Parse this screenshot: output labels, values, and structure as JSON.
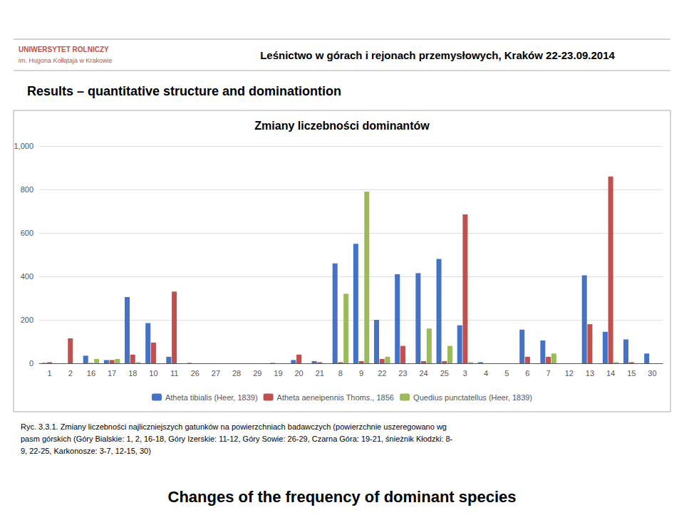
{
  "chart_data": {
    "type": "bar",
    "title": "Zmiany liczebności dominantów",
    "categories": [
      "1",
      "2",
      "16",
      "17",
      "18",
      "10",
      "11",
      "26",
      "27",
      "28",
      "29",
      "19",
      "20",
      "21",
      "8",
      "9",
      "22",
      "23",
      "24",
      "25",
      "3",
      "4",
      "5",
      "6",
      "7",
      "12",
      "13",
      "14",
      "15",
      "30"
    ],
    "series": [
      {
        "name": "Atheta tibialis (Heer, 1839)",
        "color": "#4472C4",
        "values": [
          2,
          0,
          35,
          15,
          305,
          185,
          30,
          2,
          0,
          0,
          0,
          2,
          15,
          10,
          460,
          550,
          200,
          410,
          415,
          480,
          175,
          5,
          0,
          155,
          105,
          0,
          405,
          145,
          110,
          45
        ]
      },
      {
        "name": "Atheta aeneipennis Thoms., 1856",
        "color": "#C0504D",
        "values": [
          5,
          115,
          2,
          15,
          40,
          95,
          330,
          0,
          0,
          0,
          0,
          0,
          40,
          5,
          5,
          10,
          20,
          80,
          10,
          10,
          685,
          0,
          0,
          30,
          30,
          0,
          180,
          860,
          5,
          0
        ]
      },
      {
        "name": "Quedius punctatellus (Heer, 1839)",
        "color": "#9BBB59",
        "values": [
          0,
          0,
          20,
          20,
          5,
          0,
          0,
          0,
          0,
          0,
          0,
          0,
          0,
          0,
          320,
          790,
          30,
          0,
          160,
          80,
          5,
          0,
          0,
          0,
          45,
          0,
          0,
          5,
          0,
          0
        ]
      }
    ],
    "ylim": [
      0,
      1000
    ],
    "yticks": [
      0,
      200,
      400,
      600,
      800,
      1000
    ],
    "grid": true,
    "legend": "bottom",
    "annotations": [
      "UNIWERSYTET ROLNICZY",
      "im. Hugona Kołłątaja w Krakowie",
      "Leśnictwo w górach i rejonach przemysłowych, Kraków 22-23.09.2014",
      "Results – quantitative structure and dominationtion",
      "Ryc. 3.3.1. Zmiany liczebności najliczniejszych gatunków na powierzchniach badawczych (powierzchnie uszeregowano wg\npasm górskich (Góry Bialskie: 1, 2, 16-18, Góry Izerskie: 11-12, Góry Sowie: 26-29, Czarna Góra: 19-21, śnieżnik Kłodzki: 8-\n9, 22-25, Karkonosze: 3-7, 12-15, 30)",
      "Changes of the frequency of dominant species"
    ]
  }
}
